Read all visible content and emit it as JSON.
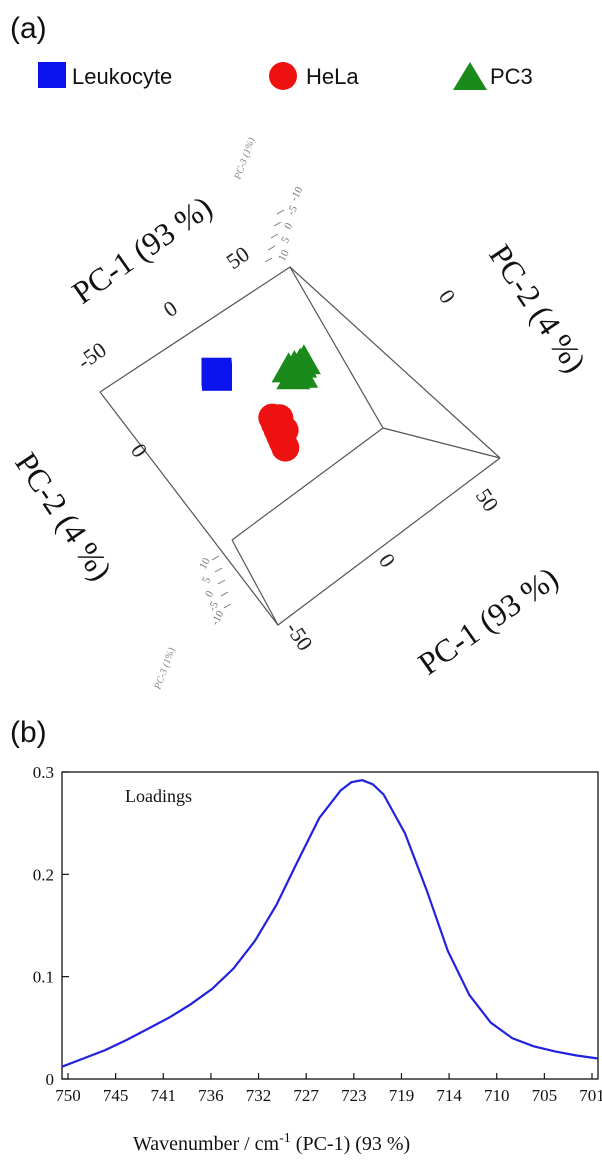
{
  "panel_labels": {
    "a": "(a)",
    "b": "(b)"
  },
  "colors": {
    "leukocyte": "#0b13ee",
    "hela": "#ee1111",
    "pc3": "#1a8a1a",
    "loadings_line": "#2222dd"
  },
  "chart_data": [
    {
      "type": "scatter",
      "legend": [
        {
          "name": "Leukocyte",
          "marker": "square",
          "color": "#0b13ee"
        },
        {
          "name": "HeLa",
          "marker": "circle",
          "color": "#ee1111"
        },
        {
          "name": "PC3",
          "marker": "triangle",
          "color": "#1a8a1a"
        }
      ],
      "axes": {
        "pc1_label": "PC-1 (93 %)",
        "pc2_label": "PC-2 (4 %)",
        "pc3_label": "PC-3 (1%)",
        "top_pc1_ticks": [
          "50",
          "0",
          "-50"
        ],
        "top_pc2_ticks": [
          "0"
        ],
        "left_pc2_ticks": [
          "0"
        ],
        "bottom_pc1_ticks": [
          "50",
          "0",
          "-50"
        ],
        "pc3_ticks_top": [
          "10",
          "5",
          "0",
          "-5",
          "-10"
        ],
        "pc3_ticks_bottom": [
          "10",
          "5",
          "0",
          "-5",
          "-10"
        ]
      },
      "clusters": [
        {
          "name": "Leukocyte",
          "pc1": -45,
          "pc2": 5,
          "spread": "tight"
        },
        {
          "name": "HeLa",
          "pc1": 25,
          "pc2": -8,
          "spread": "elongated"
        },
        {
          "name": "PC3",
          "pc1": 20,
          "pc2": 20,
          "spread": "small"
        }
      ]
    },
    {
      "type": "line",
      "annotation": "Loadings",
      "xlabel": "Wavenumber / cm",
      "xlabel_sup": "-1",
      "xlabel_suffix": "  (PC-1) (93 %)",
      "xlim": [
        750,
        700
      ],
      "ylim": [
        0,
        0.3
      ],
      "x_ticks": [
        "750",
        "745",
        "741",
        "736",
        "732",
        "727",
        "723",
        "719",
        "714",
        "710",
        "705",
        "701"
      ],
      "y_ticks": [
        "0",
        "0.1",
        "0.2",
        "0.3"
      ],
      "series": [
        {
          "x": [
            750,
            748,
            746,
            744,
            742,
            740,
            738,
            736,
            734,
            732,
            730,
            728,
            726,
            724,
            723,
            722,
            721,
            720,
            718,
            716,
            714,
            712,
            710,
            708,
            706,
            704,
            702,
            700
          ],
          "y": [
            0.012,
            0.02,
            0.028,
            0.038,
            0.049,
            0.06,
            0.073,
            0.088,
            0.108,
            0.135,
            0.17,
            0.213,
            0.255,
            0.282,
            0.29,
            0.292,
            0.288,
            0.278,
            0.24,
            0.185,
            0.125,
            0.082,
            0.055,
            0.04,
            0.032,
            0.027,
            0.023,
            0.02
          ]
        }
      ]
    }
  ]
}
